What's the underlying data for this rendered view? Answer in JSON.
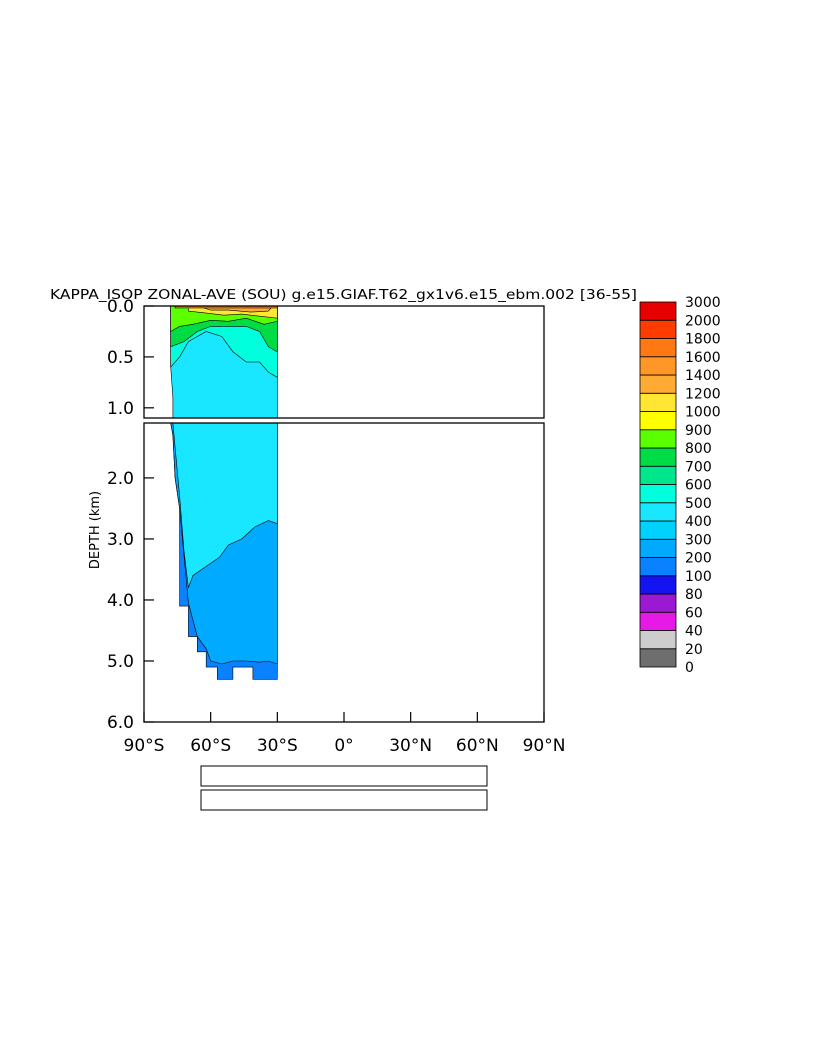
{
  "chart_data": {
    "type": "heatmap",
    "title": "KAPPA_ISOP ZONAL-AVE (SOU) g.e15.GIAF.T62_gx1v6.e15_ebm.002 [36-55]",
    "ylabel": "DEPTH (km)",
    "xlabel": "",
    "x_range": [
      -90,
      90
    ],
    "x_ticks": [
      -90,
      -60,
      -30,
      0,
      30,
      60,
      90
    ],
    "x_tick_labels": [
      "90°S",
      "60°S",
      "30°S",
      "0°",
      "30°N",
      "60°N",
      "90°N"
    ],
    "upper_panel": {
      "y_range": [
        0.0,
        1.1
      ],
      "y_ticks": [
        0.0,
        0.5,
        1.0
      ],
      "y_tick_labels": [
        "0.0",
        "0.5",
        "1.0"
      ]
    },
    "lower_panel": {
      "y_range": [
        1.1,
        6.0
      ],
      "y_ticks": [
        2.0,
        3.0,
        4.0,
        5.0,
        6.0
      ],
      "y_tick_labels": [
        "2.0",
        "3.0",
        "4.0",
        "5.0",
        "6.0"
      ]
    },
    "colorbar": {
      "levels": [
        "0",
        "20",
        "40",
        "60",
        "80",
        "100",
        "200",
        "300",
        "400",
        "500",
        "600",
        "700",
        "800",
        "900",
        "1000",
        "1200",
        "1400",
        "1600",
        "1800",
        "2000",
        "3000"
      ],
      "colors": [
        "#6e6e6e",
        "#cdcdcd",
        "#e619e6",
        "#9b19d2",
        "#1414f0",
        "#0a82ff",
        "#00aaff",
        "#00d2ff",
        "#19e6ff",
        "#00ffdc",
        "#00e68c",
        "#00dc46",
        "#5aff00",
        "#ffff00",
        "#ffe632",
        "#ffaa32",
        "#ff9628",
        "#ff7814",
        "#ff3c00",
        "#e60000",
        "#c80000"
      ]
    },
    "regions_upper": [
      {
        "poly": [
          [
            -78,
            0.0
          ],
          [
            -30,
            0.0
          ],
          [
            -30,
            1.1
          ],
          [
            -77,
            1.1
          ],
          [
            -77,
            0.9
          ],
          [
            -78,
            0.6
          ]
        ],
        "color": "#19e6ff"
      },
      {
        "poly": [
          [
            -78,
            0.0
          ],
          [
            -30,
            0.0
          ],
          [
            -30,
            0.7
          ],
          [
            -34,
            0.65
          ],
          [
            -38,
            0.55
          ],
          [
            -44,
            0.55
          ],
          [
            -50,
            0.45
          ],
          [
            -55,
            0.3
          ],
          [
            -62,
            0.25
          ],
          [
            -70,
            0.35
          ],
          [
            -74,
            0.5
          ],
          [
            -78,
            0.6
          ]
        ],
        "color": "#00ffdc"
      },
      {
        "poly": [
          [
            -78,
            0.0
          ],
          [
            -30,
            0.0
          ],
          [
            -30,
            0.45
          ],
          [
            -34,
            0.4
          ],
          [
            -38,
            0.25
          ],
          [
            -44,
            0.2
          ],
          [
            -52,
            0.2
          ],
          [
            -60,
            0.2
          ],
          [
            -66,
            0.25
          ],
          [
            -72,
            0.35
          ],
          [
            -78,
            0.4
          ]
        ],
        "color": "#00dc46"
      },
      {
        "poly": [
          [
            -78,
            0.0
          ],
          [
            -30,
            0.0
          ],
          [
            -30,
            0.15
          ],
          [
            -36,
            0.18
          ],
          [
            -44,
            0.12
          ],
          [
            -52,
            0.15
          ],
          [
            -60,
            0.14
          ],
          [
            -68,
            0.18
          ],
          [
            -74,
            0.2
          ],
          [
            -78,
            0.25
          ]
        ],
        "color": "#5aff00"
      },
      {
        "poly": [
          [
            -70,
            0.0
          ],
          [
            -30,
            0.0
          ],
          [
            -30,
            0.12
          ],
          [
            -38,
            0.1
          ],
          [
            -46,
            0.08
          ],
          [
            -54,
            0.09
          ],
          [
            -62,
            0.07
          ],
          [
            -70,
            0.05
          ]
        ],
        "color": "#ffe632"
      },
      {
        "poly": [
          [
            -66,
            0.0
          ],
          [
            -32,
            0.0
          ],
          [
            -34,
            0.05
          ],
          [
            -42,
            0.06
          ],
          [
            -52,
            0.04
          ],
          [
            -60,
            0.04
          ]
        ],
        "color": "#ffaa32"
      },
      {
        "poly": [
          [
            -76,
            0.0
          ],
          [
            -30,
            0.0
          ],
          [
            -30,
            0.02
          ],
          [
            -76,
            0.02
          ]
        ],
        "color": "#ff7814"
      }
    ],
    "regions_lower": [
      {
        "poly": [
          [
            -78,
            1.1
          ],
          [
            -30,
            1.1
          ],
          [
            -30,
            5.3
          ],
          [
            -41,
            5.3
          ],
          [
            -41,
            5.1
          ],
          [
            -50,
            5.1
          ],
          [
            -50,
            5.3
          ],
          [
            -57,
            5.3
          ],
          [
            -57,
            5.1
          ],
          [
            -62,
            5.1
          ],
          [
            -62,
            4.85
          ],
          [
            -66,
            4.85
          ],
          [
            -66,
            4.6
          ],
          [
            -70,
            4.6
          ],
          [
            -70,
            4.1
          ],
          [
            -74,
            4.1
          ],
          [
            -74,
            2.5
          ],
          [
            -76,
            2.0
          ],
          [
            -77,
            1.3
          ]
        ],
        "color": "#0a82ff"
      },
      {
        "poly": [
          [
            -78,
            1.1
          ],
          [
            -30,
            1.1
          ],
          [
            -30,
            5.05
          ],
          [
            -34,
            5.0
          ],
          [
            -38,
            5.02
          ],
          [
            -44,
            5.0
          ],
          [
            -50,
            5.0
          ],
          [
            -55,
            5.05
          ],
          [
            -60,
            5.0
          ],
          [
            -62,
            4.8
          ],
          [
            -66,
            4.6
          ],
          [
            -70,
            4.05
          ],
          [
            -74,
            2.5
          ],
          [
            -76,
            2.0
          ],
          [
            -77,
            1.3
          ]
        ],
        "color": "#00aaff"
      },
      {
        "poly": [
          [
            -77,
            1.1
          ],
          [
            -30,
            1.1
          ],
          [
            -30,
            2.75
          ],
          [
            -34,
            2.7
          ],
          [
            -40,
            2.8
          ],
          [
            -46,
            3.0
          ],
          [
            -52,
            3.1
          ],
          [
            -56,
            3.3
          ],
          [
            -60,
            3.4
          ],
          [
            -64,
            3.5
          ],
          [
            -68,
            3.6
          ],
          [
            -70,
            3.8
          ],
          [
            -72,
            3.2
          ],
          [
            -74,
            2.3
          ],
          [
            -76,
            1.5
          ]
        ],
        "color": "#19e6ff"
      }
    ]
  }
}
